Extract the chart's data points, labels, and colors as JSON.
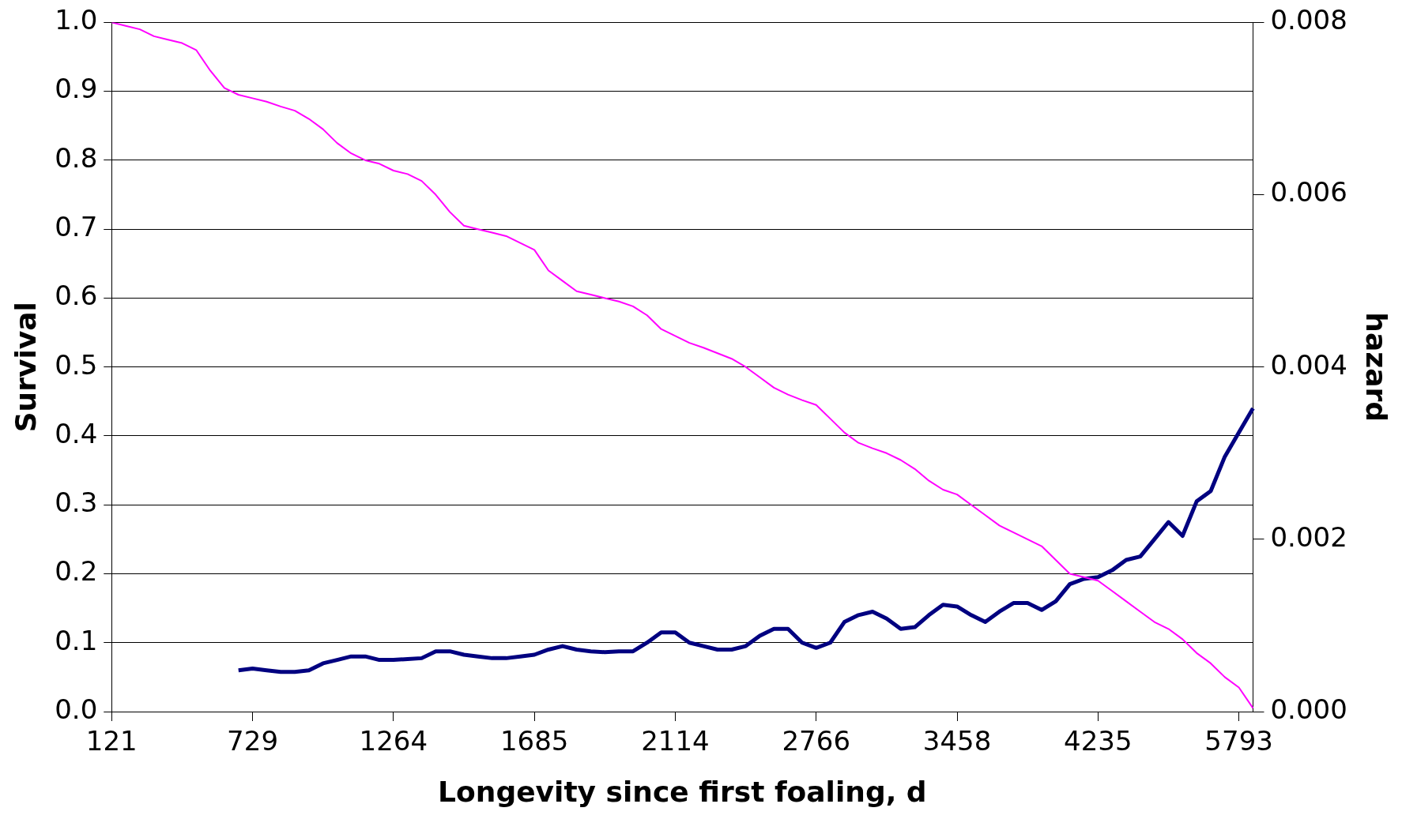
{
  "chart_data": {
    "type": "line",
    "xlabel": "Longevity since first foaling, d",
    "ylabel": "Survival",
    "y2label": "hazard",
    "marker": "none",
    "grid": "y",
    "categories": [
      "121",
      null,
      null,
      null,
      null,
      null,
      null,
      null,
      null,
      null,
      "729",
      null,
      null,
      null,
      null,
      null,
      null,
      null,
      null,
      null,
      "1264",
      null,
      null,
      null,
      null,
      null,
      null,
      null,
      null,
      null,
      "1685",
      null,
      null,
      null,
      null,
      null,
      null,
      null,
      null,
      null,
      "2114",
      null,
      null,
      null,
      null,
      null,
      null,
      null,
      null,
      null,
      "2766",
      null,
      null,
      null,
      null,
      null,
      null,
      null,
      null,
      null,
      "3458",
      null,
      null,
      null,
      null,
      null,
      null,
      null,
      null,
      null,
      "4235",
      null,
      null,
      null,
      null,
      null,
      null,
      null,
      null,
      null,
      "5793",
      null
    ],
    "ylim": [
      0,
      1
    ],
    "yticks": [
      {
        "value": 0,
        "label": "0.0"
      },
      {
        "value": 0.1,
        "label": "0.1"
      },
      {
        "value": 0.2,
        "label": "0.2"
      },
      {
        "value": 0.3,
        "label": "0.3"
      },
      {
        "value": 0.4,
        "label": "0.4"
      },
      {
        "value": 0.5,
        "label": "0.5"
      },
      {
        "value": 0.6,
        "label": "0.6"
      },
      {
        "value": 0.7,
        "label": "0.7"
      },
      {
        "value": 0.8,
        "label": "0.8"
      },
      {
        "value": 0.9,
        "label": "0.9"
      },
      {
        "value": 1,
        "label": "1.0"
      }
    ],
    "y2lim": [
      0,
      0.008
    ],
    "y2ticks": [
      {
        "value": 0,
        "label": "0.000"
      },
      {
        "value": 0.002,
        "label": "0.002"
      },
      {
        "value": 0.004,
        "label": "0.004"
      },
      {
        "value": 0.006,
        "label": "0.006"
      },
      {
        "value": 0.008,
        "label": "0.008"
      }
    ],
    "series": [
      {
        "color": "#ff00ff",
        "values": [
          1.0,
          0.995,
          0.99,
          0.98,
          0.975,
          0.97,
          0.96,
          0.93,
          0.905,
          0.895,
          0.89,
          0.885,
          0.878,
          0.872,
          0.86,
          0.845,
          0.825,
          0.81,
          0.8,
          0.795,
          0.785,
          0.78,
          0.77,
          0.75,
          0.725,
          0.705,
          0.7,
          0.695,
          0.69,
          0.68,
          0.67,
          0.64,
          0.625,
          0.61,
          0.605,
          0.6,
          0.595,
          0.588,
          0.575,
          0.555,
          0.545,
          0.535,
          0.528,
          0.52,
          0.512,
          0.5,
          0.485,
          0.47,
          0.46,
          0.452,
          0.445,
          0.425,
          0.405,
          0.39,
          0.382,
          0.375,
          0.365,
          0.352,
          0.335,
          0.322,
          0.315,
          0.3,
          0.285,
          0.27,
          0.26,
          0.25,
          0.24,
          0.22,
          0.2,
          0.195,
          0.19,
          0.175,
          0.16,
          0.145,
          0.13,
          0.12,
          0.105,
          0.085,
          0.07,
          0.05,
          0.035,
          0.005
        ]
      },
      {
        "color": "#000080",
        "axis": "y2",
        "values": [
          null,
          null,
          null,
          null,
          null,
          null,
          null,
          null,
          null,
          0.00048,
          0.0005,
          0.00048,
          0.00046,
          0.00046,
          0.00048,
          0.00056,
          0.0006,
          0.00064,
          0.00064,
          0.0006,
          0.0006,
          0.00061,
          0.00062,
          0.0007,
          0.0007,
          0.00066,
          0.00064,
          0.00062,
          0.00062,
          0.00064,
          0.00066,
          0.00072,
          0.00076,
          0.00072,
          0.0007,
          0.00069,
          0.0007,
          0.0007,
          0.0008,
          0.00092,
          0.00092,
          0.0008,
          0.00076,
          0.00072,
          0.00072,
          0.00076,
          0.00088,
          0.00096,
          0.00096,
          0.0008,
          0.00074,
          0.0008,
          0.00104,
          0.00112,
          0.00116,
          0.00108,
          0.00096,
          0.00098,
          0.00112,
          0.00124,
          0.00122,
          0.00112,
          0.00104,
          0.00116,
          0.00126,
          0.00126,
          0.00118,
          0.00128,
          0.00148,
          0.00154,
          0.00156,
          0.00164,
          0.00176,
          0.0018,
          0.002,
          0.0022,
          0.00204,
          0.00244,
          0.00256,
          0.00296,
          0.00324,
          0.00352
        ]
      }
    ]
  }
}
